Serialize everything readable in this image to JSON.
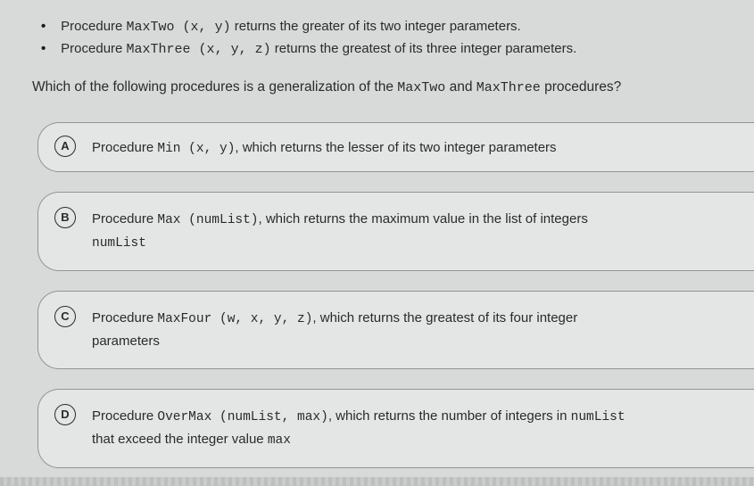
{
  "colors": {
    "page_bg": "#d8dad9",
    "card_bg": "#e4e6e5",
    "card_border": "#8f9693",
    "text": "#2a2a2a"
  },
  "typography": {
    "body_font": "Arial",
    "mono_font": "Courier New",
    "base_size_pt": 11
  },
  "intro": {
    "items": [
      {
        "prefix": "Procedure ",
        "code": "MaxTwo (x, y)",
        "suffix": " returns the greater of its two integer parameters."
      },
      {
        "prefix": "Procedure ",
        "code": "MaxThree (x, y, z)",
        "suffix": " returns the greatest of its three integer parameters."
      }
    ]
  },
  "question": {
    "part1": "Which of the following procedures is a generalization of the ",
    "code1": "MaxTwo",
    "mid": " and ",
    "code2": "MaxThree",
    "part2": " procedures?"
  },
  "options": [
    {
      "letter": "A",
      "pre": "Procedure ",
      "code": "Min (x, y)",
      "post": ", which returns the lesser of its two integer parameters",
      "line2_pre": "",
      "line2_code": "",
      "line2_post": ""
    },
    {
      "letter": "B",
      "pre": "Procedure ",
      "code": "Max (numList)",
      "post": ", which returns the maximum value in the list of integers",
      "line2_pre": "",
      "line2_code": "numList",
      "line2_post": ""
    },
    {
      "letter": "C",
      "pre": "Procedure ",
      "code": "MaxFour (w, x, y, z)",
      "post": ", which returns the greatest of its four integer",
      "line2_pre": "parameters",
      "line2_code": "",
      "line2_post": ""
    },
    {
      "letter": "D",
      "pre": "Procedure ",
      "code": "OverMax (numList, max)",
      "post": ", which returns the number of integers in ",
      "post_code": "numList",
      "line2_pre": "that exceed the integer value ",
      "line2_code": "max",
      "line2_post": ""
    }
  ]
}
